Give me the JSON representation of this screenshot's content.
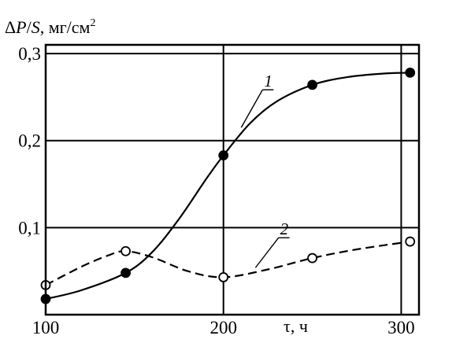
{
  "chart_data": {
    "type": "line",
    "ylabel": "ΔP/S, мг/см²",
    "ylabel_parts": {
      "delta": "Δ",
      "P": "P",
      "slash": "/",
      "S": "S",
      "unit": ", мг/см",
      "sup": "2"
    },
    "xlabel": "τ, ч",
    "xlim": [
      100,
      310
    ],
    "ylim": [
      0,
      0.31
    ],
    "x_ticks": [
      {
        "value": 100,
        "label": "100"
      },
      {
        "value": 200,
        "label": "200"
      },
      {
        "value": 300,
        "label": "300"
      }
    ],
    "y_ticks": [
      {
        "value": 0.1,
        "label": "0,1"
      },
      {
        "value": 0.2,
        "label": "0,2"
      },
      {
        "value": 0.3,
        "label": "0,3"
      }
    ],
    "grid": true,
    "series": [
      {
        "name": "1",
        "style": "solid",
        "marker": "filled-circle",
        "points": [
          {
            "x": 100,
            "y": 0.018
          },
          {
            "x": 145,
            "y": 0.048
          },
          {
            "x": 200,
            "y": 0.183
          },
          {
            "x": 250,
            "y": 0.264
          },
          {
            "x": 305,
            "y": 0.278
          }
        ],
        "curve": [
          {
            "x": 100,
            "y": 0.018
          },
          {
            "x": 120,
            "y": 0.028
          },
          {
            "x": 145,
            "y": 0.048
          },
          {
            "x": 160,
            "y": 0.072
          },
          {
            "x": 175,
            "y": 0.11
          },
          {
            "x": 190,
            "y": 0.155
          },
          {
            "x": 200,
            "y": 0.183
          },
          {
            "x": 215,
            "y": 0.22
          },
          {
            "x": 230,
            "y": 0.245
          },
          {
            "x": 250,
            "y": 0.264
          },
          {
            "x": 270,
            "y": 0.273
          },
          {
            "x": 290,
            "y": 0.277
          },
          {
            "x": 305,
            "y": 0.278
          }
        ],
        "label_anchor": {
          "x": 222,
          "y": 0.262
        },
        "label_target": {
          "x": 210,
          "y": 0.215
        }
      },
      {
        "name": "2",
        "style": "dashed",
        "marker": "open-circle",
        "points": [
          {
            "x": 100,
            "y": 0.034
          },
          {
            "x": 145,
            "y": 0.073
          },
          {
            "x": 200,
            "y": 0.043
          },
          {
            "x": 250,
            "y": 0.065
          },
          {
            "x": 305,
            "y": 0.084
          }
        ],
        "curve": [
          {
            "x": 100,
            "y": 0.034
          },
          {
            "x": 120,
            "y": 0.055
          },
          {
            "x": 135,
            "y": 0.068
          },
          {
            "x": 145,
            "y": 0.073
          },
          {
            "x": 160,
            "y": 0.066
          },
          {
            "x": 180,
            "y": 0.05
          },
          {
            "x": 200,
            "y": 0.043
          },
          {
            "x": 225,
            "y": 0.052
          },
          {
            "x": 250,
            "y": 0.065
          },
          {
            "x": 275,
            "y": 0.075
          },
          {
            "x": 305,
            "y": 0.084
          }
        ],
        "label_anchor": {
          "x": 231,
          "y": 0.092
        },
        "label_target": {
          "x": 218,
          "y": 0.054
        }
      }
    ]
  }
}
